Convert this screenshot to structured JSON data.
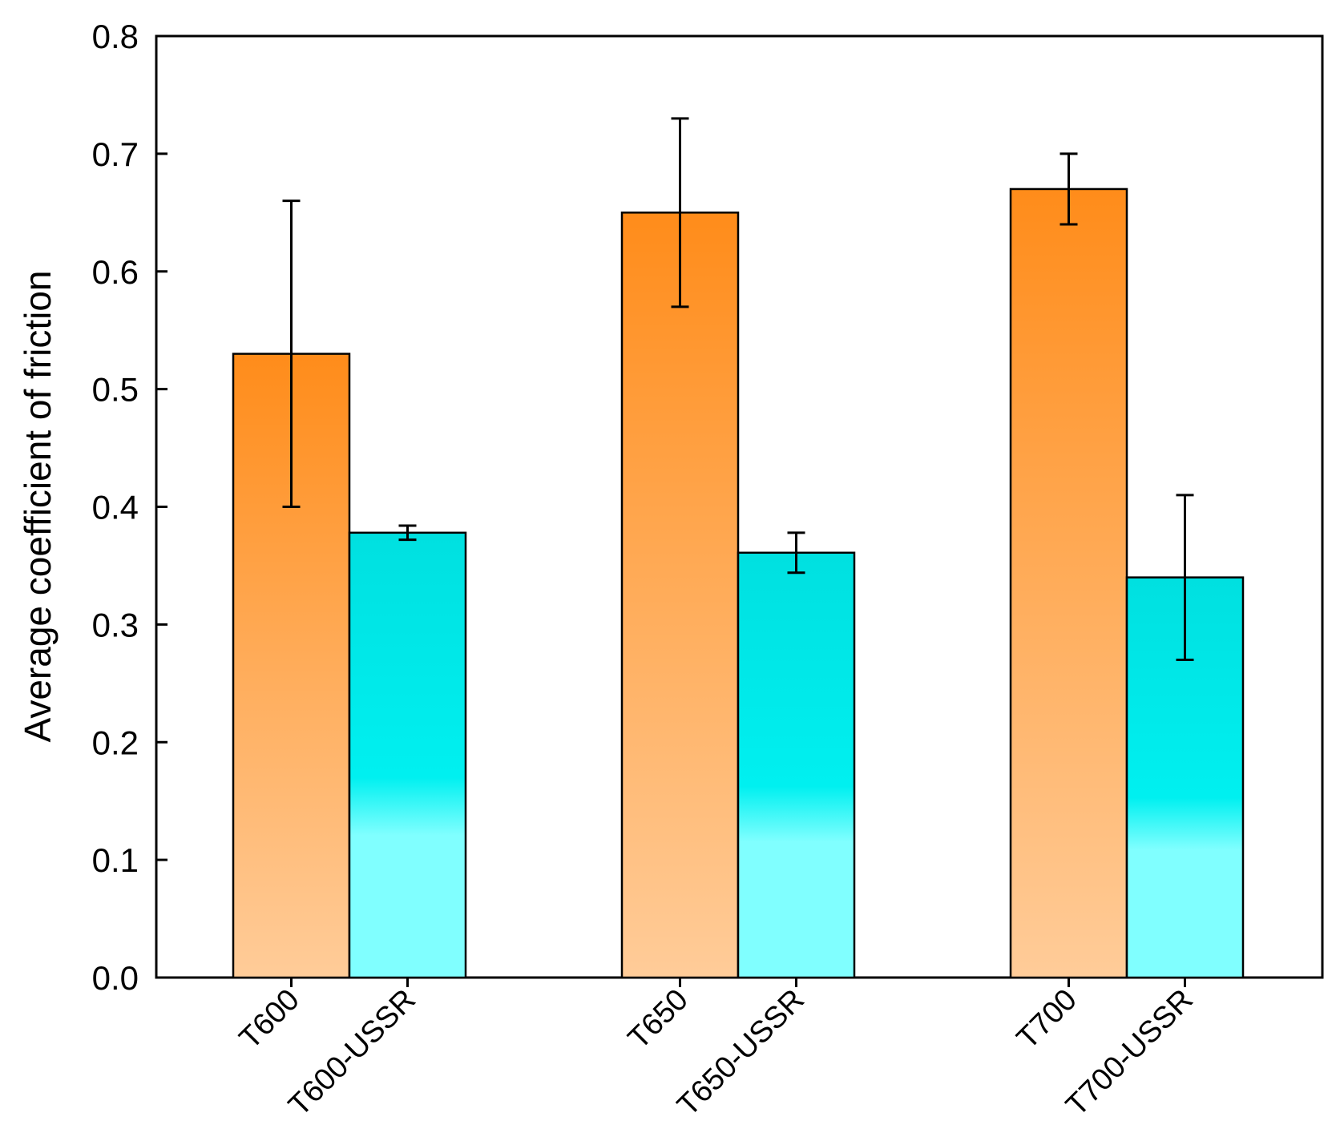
{
  "chart_data": {
    "type": "bar",
    "title": "",
    "xlabel": "",
    "ylabel": "Average coefficient of friction",
    "ylim": [
      0.0,
      0.8
    ],
    "yticks": [
      "0.0",
      "0.1",
      "0.2",
      "0.3",
      "0.4",
      "0.5",
      "0.6",
      "0.7",
      "0.8"
    ],
    "grid": false,
    "bars": [
      {
        "label": "T600",
        "value": 0.53,
        "err_low": 0.4,
        "err_high": 0.66,
        "series": "untreated"
      },
      {
        "label": "T600-USSR",
        "value": 0.378,
        "err_low": 0.372,
        "err_high": 0.384,
        "series": "USSR"
      },
      {
        "label": "T650",
        "value": 0.65,
        "err_low": 0.57,
        "err_high": 0.73,
        "series": "untreated"
      },
      {
        "label": "T650-USSR",
        "value": 0.361,
        "err_low": 0.344,
        "err_high": 0.378,
        "series": "USSR"
      },
      {
        "label": "T700",
        "value": 0.67,
        "err_low": 0.64,
        "err_high": 0.7,
        "series": "untreated"
      },
      {
        "label": "T700-USSR",
        "value": 0.34,
        "err_low": 0.27,
        "err_high": 0.41,
        "series": "USSR"
      }
    ],
    "colors": {
      "untreated_top": "#ff8c1a",
      "untreated_bottom": "#ffcc99",
      "ussr_top": "#00e0e0",
      "ussr_mid": "#00f0f0",
      "ussr_bottom": "#80ffff"
    }
  }
}
